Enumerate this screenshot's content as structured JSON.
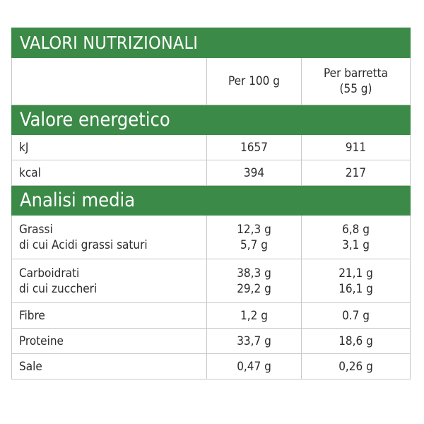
{
  "title": "VALORI NUTRIZIONALI",
  "columns": {
    "per_100g": "Per 100 g",
    "per_bar_line1": "Per barretta",
    "per_bar_line2": "(55 g)"
  },
  "energy": {
    "heading": "Valore energetico",
    "rows": [
      {
        "label": "kJ",
        "per_100g": "1657",
        "per_bar": "911"
      },
      {
        "label": "kcal",
        "per_100g": "394",
        "per_bar": "217"
      }
    ]
  },
  "analysis": {
    "heading": "Analisi media",
    "rows": [
      {
        "label": "Grassi",
        "sublabel": "di cui Acidi grassi saturi",
        "per_100g": "12,3 g",
        "per_100g_sub": "5,7 g",
        "per_bar": "6,8 g",
        "per_bar_sub": "3,1 g"
      },
      {
        "label": "Carboidrati",
        "sublabel": "di cui zuccheri",
        "per_100g": "38,3 g",
        "per_100g_sub": "29,2 g",
        "per_bar": "21,1 g",
        "per_bar_sub": "16,1 g"
      },
      {
        "label": "Fibre",
        "per_100g": "1,2 g",
        "per_bar": "0.7 g"
      },
      {
        "label": "Proteine",
        "per_100g": "33,7 g",
        "per_bar": "18,6 g"
      },
      {
        "label": "Sale",
        "per_100g": "0,47 g",
        "per_bar": "0,26 g"
      }
    ]
  },
  "colors": {
    "header_green": "#3b8a47",
    "border": "#c8c8c8",
    "text": "#2b2b2b"
  }
}
